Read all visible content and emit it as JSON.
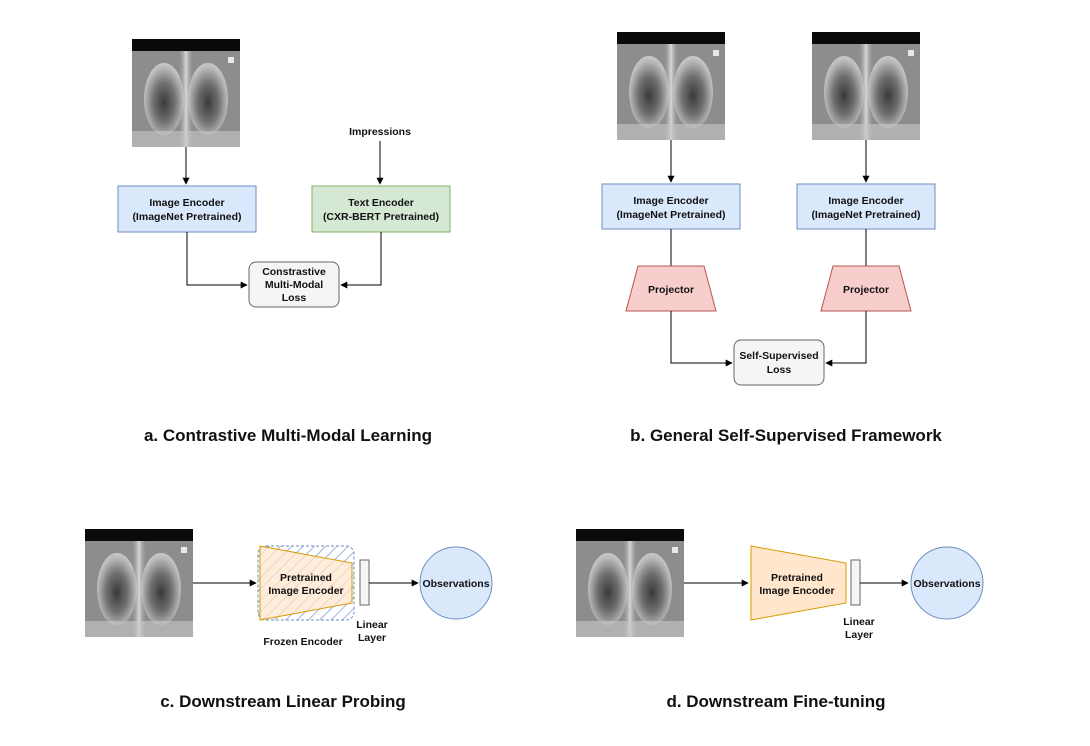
{
  "panel_a": {
    "impressions_label": "Impressions",
    "image_encoder": [
      "Image Encoder",
      "(ImageNet Pretrained)"
    ],
    "text_encoder": [
      "Text Encoder",
      "(CXR-BERT Pretrained)"
    ],
    "loss": [
      "Constrastive",
      "Multi-Modal",
      "Loss"
    ],
    "caption": "a. Contrastive Multi-Modal Learning"
  },
  "panel_b": {
    "left_encoder": [
      "Image Encoder",
      "(ImageNet Pretrained)"
    ],
    "right_encoder": [
      "Image Encoder",
      "(ImageNet Pretrained)"
    ],
    "projector_label": "Projector",
    "loss": [
      "Self-Supervised",
      "Loss"
    ],
    "caption": "b. General Self-Supervised Framework"
  },
  "panel_c": {
    "encoder": [
      "Pretrained",
      "Image Encoder"
    ],
    "frozen_label": "Frozen Encoder",
    "linear_layer": [
      "Linear",
      "Layer"
    ],
    "output_label": "Observations",
    "caption": "c. Downstream Linear Probing"
  },
  "panel_d": {
    "encoder": [
      "Pretrained",
      "Image Encoder"
    ],
    "linear_layer": [
      "Linear",
      "Layer"
    ],
    "output_label": "Observations",
    "caption": "d. Downstream Fine-tuning"
  },
  "colors": {
    "image_encoder_fill": "#dae8fc",
    "image_encoder_stroke": "#6c8ebf",
    "text_encoder_fill": "#d5e8d4",
    "text_encoder_stroke": "#82b366",
    "projector_fill": "#f8cecc",
    "projector_stroke": "#b85450",
    "loss_fill": "#f5f5f5",
    "loss_stroke": "#666666",
    "pretrained_encoder_fill": "#ffe6cc",
    "pretrained_encoder_stroke": "#d79b00",
    "observations_fill": "#dae8fc"
  }
}
